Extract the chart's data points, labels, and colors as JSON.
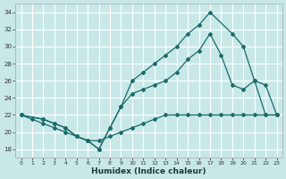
{
  "xlabel": "Humidex (Indice chaleur)",
  "bg_color": "#c8e8e8",
  "grid_color": "#ffffff",
  "line_color": "#1a6b6b",
  "xlim": [
    -0.5,
    23.5
  ],
  "ylim": [
    17,
    35
  ],
  "xticks": [
    0,
    1,
    2,
    3,
    4,
    5,
    6,
    7,
    8,
    9,
    10,
    11,
    12,
    13,
    14,
    15,
    16,
    17,
    18,
    19,
    20,
    21,
    22,
    23
  ],
  "yticks": [
    18,
    20,
    22,
    24,
    26,
    28,
    30,
    32,
    34
  ],
  "line_bottom_x": [
    0,
    1,
    2,
    3,
    4,
    5,
    6,
    7,
    8,
    9,
    10,
    11,
    12,
    13,
    14,
    15,
    16,
    17,
    18,
    19,
    20,
    21,
    22,
    23
  ],
  "line_bottom_y": [
    22,
    21.5,
    21,
    20.5,
    20,
    19.5,
    19,
    19,
    19.5,
    20,
    20.5,
    21,
    21.5,
    22,
    22,
    22,
    22,
    22,
    22,
    22,
    22,
    22,
    22,
    22
  ],
  "line_mid_x": [
    0,
    2,
    3,
    4,
    5,
    6,
    7,
    8,
    9,
    10,
    11,
    12,
    13,
    14,
    15,
    16,
    17,
    18,
    19,
    20,
    21,
    22,
    23
  ],
  "line_mid_y": [
    22,
    21.5,
    21,
    20.5,
    19.5,
    19,
    18,
    20.5,
    23,
    24.5,
    25,
    25.5,
    26,
    27,
    28.5,
    29.5,
    31.5,
    29,
    25.5,
    25,
    26,
    22,
    22
  ],
  "line_top_x": [
    0,
    2,
    3,
    4,
    5,
    6,
    7,
    8,
    9,
    10,
    11,
    12,
    13,
    14,
    15,
    16,
    17,
    19,
    20,
    21,
    22,
    23
  ],
  "line_top_y": [
    22,
    21.5,
    21,
    20.5,
    19.5,
    19,
    18,
    20.5,
    23,
    26,
    27,
    28,
    29,
    30,
    31.5,
    32.5,
    34,
    31.5,
    30,
    26,
    25.5,
    22
  ]
}
